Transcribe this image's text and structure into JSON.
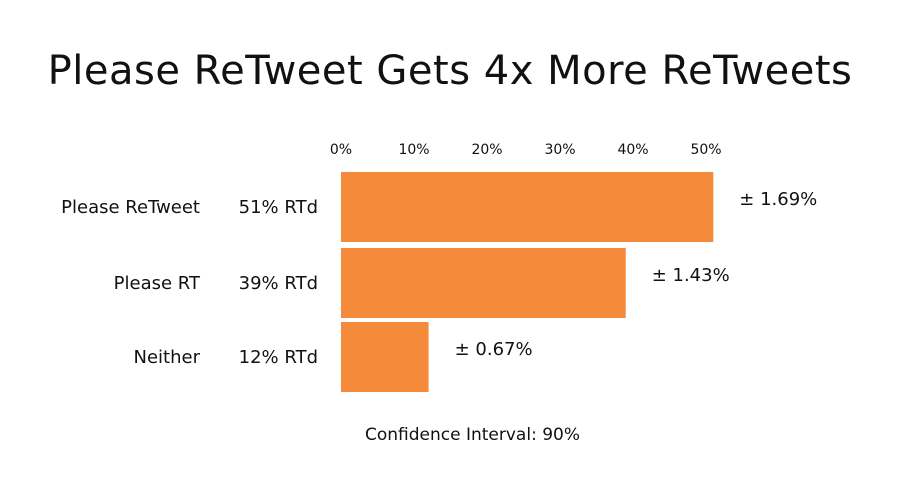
{
  "chart_data": {
    "type": "bar",
    "orientation": "horizontal",
    "title": "Please ReTweet Gets 4x More ReTweets",
    "categories": [
      "Please ReTweet",
      "Please RT",
      "Neither"
    ],
    "values": [
      51,
      39,
      12
    ],
    "value_labels": [
      "51% RTd",
      "39% RTd",
      "12% RTd"
    ],
    "error_labels": [
      "± 1.69%",
      "± 1.43%",
      "± 0.67%"
    ],
    "errors": [
      1.69,
      1.43,
      0.67
    ],
    "x_ticks": [
      "0%",
      "10%",
      "20%",
      "30%",
      "40%",
      "50%"
    ],
    "x_tick_values": [
      0,
      10,
      20,
      30,
      40,
      50
    ],
    "xlim": [
      0,
      50
    ],
    "axis_position": "top",
    "grid": false,
    "bar_color": "#f58a3a",
    "footer": "Confidence Interval: 90%"
  }
}
